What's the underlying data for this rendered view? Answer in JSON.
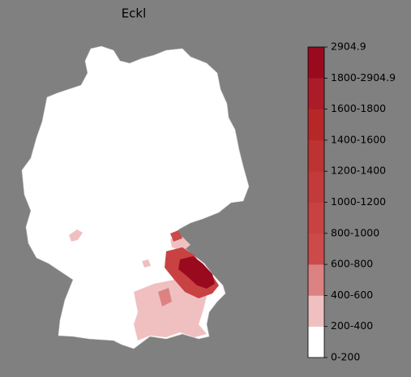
{
  "title": "Eckl",
  "legend": {
    "labels": [
      "2904.9",
      "1800-2904.9",
      "1600-1800",
      "1400-1600",
      "1200-1400",
      "1000-1200",
      "800-1000",
      "600-800",
      "400-600",
      "200-400",
      "0-200"
    ],
    "band_colors": [
      "#ffffff",
      "#f0c0c0",
      "#dc8282",
      "#cc4a4a",
      "#c84242",
      "#c33a3a",
      "#bd3232",
      "#b62828",
      "#ac1c28",
      "#9a0a1e"
    ]
  }
}
